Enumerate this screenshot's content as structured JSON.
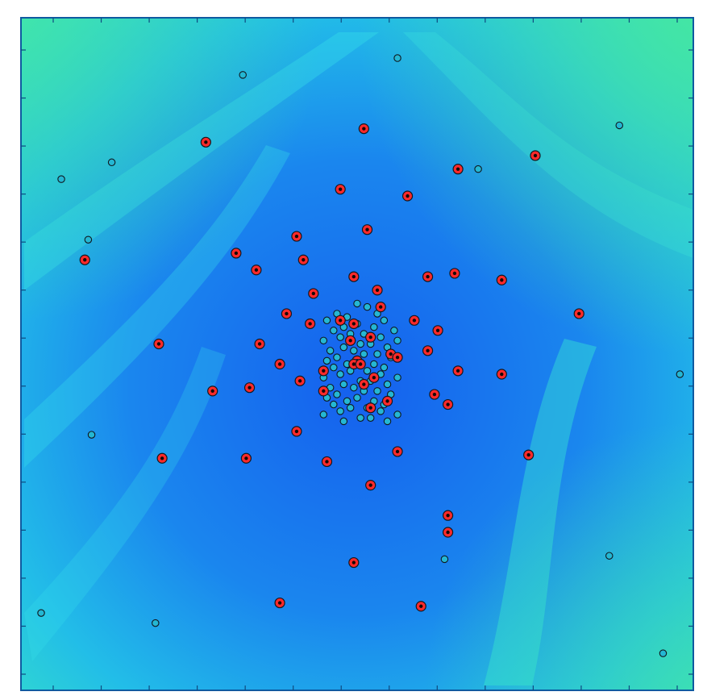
{
  "chart_data": {
    "type": "scatter",
    "title": "",
    "xlabel": "",
    "ylabel": "",
    "xlim": [
      0,
      100
    ],
    "ylim": [
      0,
      100
    ],
    "grid": false,
    "legend": "none",
    "colors": {
      "background_deep": "#1560ee",
      "background_mid": "#1ea8ee",
      "background_light": "#2fe0e8",
      "background_green": "#3fe6a0",
      "frame": "#0f5aa0",
      "red_marker": "#ff2a2a",
      "cyan_marker": "#24b7d3",
      "marker_edge": "#101820"
    },
    "series": [
      {
        "marker": "red-filled-circle",
        "x": [
          51.0,
          27.5,
          76.5,
          65.0,
          47.5,
          57.5,
          41.0,
          32.0,
          51.5,
          9.5,
          42.0,
          35.0,
          60.5,
          64.5,
          71.5,
          49.5,
          53.0,
          53.5,
          43.5,
          58.5,
          62.0,
          83.0,
          20.5,
          35.5,
          39.5,
          43.0,
          47.5,
          49.5,
          49.0,
          52.0,
          55.0,
          56.0,
          38.5,
          50.0,
          60.5,
          65.0,
          71.5,
          28.5,
          34.0,
          41.5,
          45.0,
          49.5,
          50.5,
          52.5,
          51.0,
          54.5,
          61.5,
          45.0,
          52.0,
          63.5,
          75.5,
          21.0,
          33.5,
          41.0,
          45.5,
          56.0,
          52.0,
          63.5,
          63.5,
          49.5,
          38.5,
          59.5
        ],
        "y": [
          83.5,
          81.5,
          79.5,
          77.5,
          74.5,
          73.5,
          67.5,
          65.0,
          68.5,
          64.0,
          64.0,
          62.5,
          61.5,
          62.0,
          61.0,
          61.5,
          59.5,
          57.0,
          59.0,
          55.0,
          53.5,
          56.0,
          51.5,
          51.5,
          56.0,
          54.5,
          55.0,
          54.5,
          52.0,
          52.5,
          50.0,
          49.5,
          48.5,
          49.0,
          50.5,
          47.5,
          47.0,
          44.5,
          45.0,
          46.0,
          47.5,
          48.5,
          48.5,
          46.5,
          45.5,
          43.0,
          44.0,
          44.5,
          42.0,
          42.5,
          35.0,
          34.5,
          34.5,
          38.5,
          34.0,
          35.5,
          30.5,
          23.5,
          26.0,
          19.0,
          13.0,
          12.5
        ]
      },
      {
        "marker": "cyan-circle",
        "x": [
          33.0,
          56.0,
          13.5,
          89.0,
          6.0,
          68.0,
          10.0,
          10.5,
          98.0,
          63.0,
          87.5,
          20.0,
          3.0,
          95.5,
          50.0,
          51.5,
          53.0,
          47.0,
          48.5,
          54.0,
          45.5,
          50.0,
          52.5,
          48.0,
          55.5,
          46.5,
          49.0,
          51.0,
          53.5,
          47.5,
          56.0,
          45.0,
          50.5,
          52.0,
          48.0,
          54.5,
          46.0,
          49.5,
          51.0,
          53.0,
          47.0,
          55.0,
          45.5,
          50.0,
          52.5,
          48.5,
          54.0,
          46.5,
          49.0,
          51.5,
          53.5,
          47.5,
          56.0,
          45.0,
          50.5,
          52.0,
          48.0,
          54.5,
          46.0,
          49.5,
          51.0,
          53.0,
          47.0,
          55.0,
          45.5,
          50.0,
          52.5,
          48.5,
          54.0,
          46.5,
          49.0,
          51.5,
          53.5,
          47.5,
          56.0,
          45.0,
          50.5,
          52.0,
          48.0,
          54.5
        ],
        "y": [
          91.5,
          94.0,
          78.5,
          84.0,
          76.0,
          77.5,
          67.0,
          38.0,
          47.0,
          19.5,
          20.0,
          10.0,
          11.5,
          5.5,
          57.5,
          57.0,
          56.0,
          56.0,
          55.5,
          55.0,
          55.0,
          54.5,
          54.0,
          54.0,
          53.5,
          53.5,
          53.0,
          53.0,
          52.5,
          52.5,
          52.0,
          52.0,
          51.5,
          51.5,
          51.0,
          51.0,
          50.5,
          50.5,
          50.0,
          50.0,
          49.5,
          49.5,
          49.0,
          49.0,
          48.5,
          48.5,
          48.0,
          48.0,
          47.5,
          47.5,
          47.0,
          47.0,
          46.5,
          46.5,
          46.0,
          46.0,
          45.5,
          45.5,
          45.0,
          45.0,
          44.5,
          44.5,
          44.0,
          44.0,
          43.5,
          43.5,
          43.0,
          43.0,
          42.5,
          42.5,
          42.0,
          42.0,
          41.5,
          41.5,
          41.0,
          41.0,
          40.5,
          40.5,
          40.0,
          40.0
        ]
      }
    ]
  }
}
